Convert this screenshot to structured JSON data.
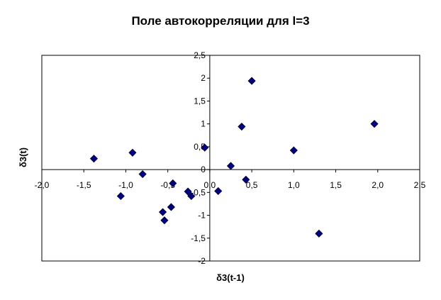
{
  "chart_data": {
    "type": "scatter",
    "title": "Поле автокорреляции для l=3",
    "xlabel": "δ3(t-1)",
    "ylabel": "δ3(t)",
    "xlim": [
      -2.0,
      2.5
    ],
    "ylim": [
      -2,
      2.5
    ],
    "x_ticks": [
      -2.0,
      -1.5,
      -1.0,
      -0.5,
      0.0,
      0.5,
      1.0,
      1.5,
      2.0,
      2.5
    ],
    "y_ticks": [
      -2,
      -1.5,
      -1,
      -0.5,
      0,
      0.5,
      1,
      1.5,
      2,
      2.5
    ],
    "x_tick_labels": [
      "-2,0",
      "-1,5",
      "-1,0",
      "-0,5",
      "0,0",
      "0,5",
      "1,0",
      "1,5",
      "2,0",
      "2,5"
    ],
    "y_tick_labels": [
      "-2",
      "-1,5",
      "-1",
      "-0,5",
      "0",
      "0,5",
      "1",
      "1,5",
      "2",
      "2,5"
    ],
    "grid": false,
    "legend": "none",
    "marker": "diamond",
    "marker_color": "#000080",
    "points": [
      {
        "x": -1.38,
        "y": 0.24
      },
      {
        "x": -0.92,
        "y": 0.37
      },
      {
        "x": -0.8,
        "y": -0.1
      },
      {
        "x": -1.06,
        "y": -0.58
      },
      {
        "x": -0.56,
        "y": -0.93
      },
      {
        "x": -0.54,
        "y": -1.11
      },
      {
        "x": -0.46,
        "y": -0.82
      },
      {
        "x": -0.44,
        "y": -0.3
      },
      {
        "x": -0.26,
        "y": -0.48
      },
      {
        "x": -0.22,
        "y": -0.58
      },
      {
        "x": -0.06,
        "y": 0.48
      },
      {
        "x": 0.1,
        "y": -0.47
      },
      {
        "x": 0.25,
        "y": 0.08
      },
      {
        "x": 0.38,
        "y": 0.94
      },
      {
        "x": 0.43,
        "y": -0.22
      },
      {
        "x": 0.5,
        "y": 1.94
      },
      {
        "x": 1.0,
        "y": 0.42
      },
      {
        "x": 1.3,
        "y": -1.4
      },
      {
        "x": 1.96,
        "y": 1.0
      }
    ]
  }
}
